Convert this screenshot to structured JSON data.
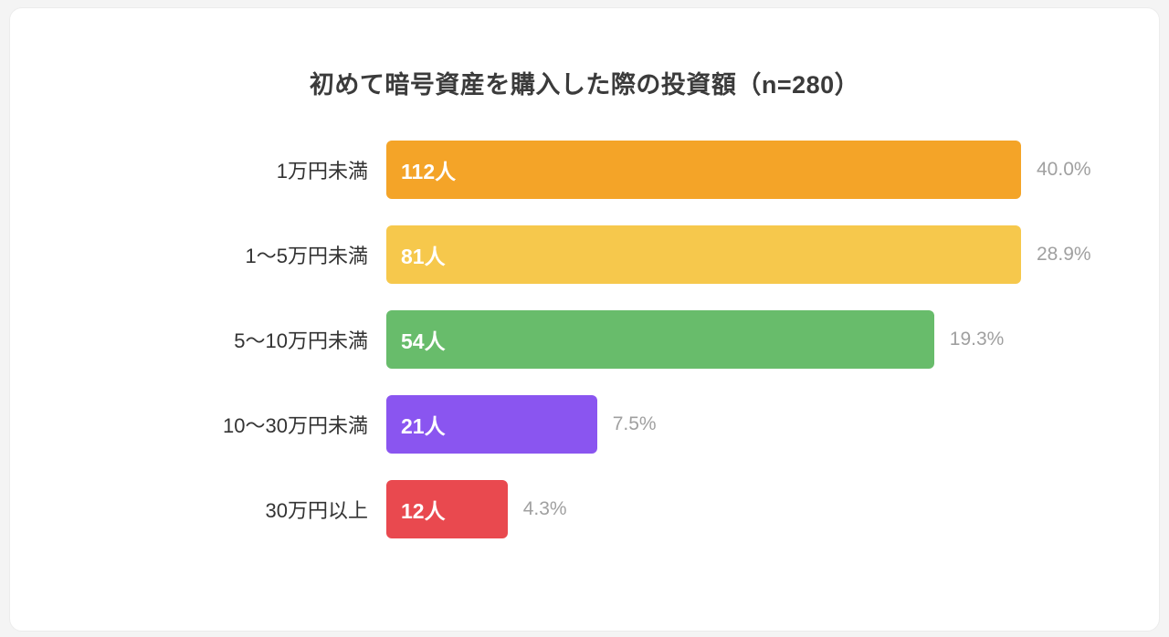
{
  "page": {
    "background_color": "#f4f4f4",
    "card_background_color": "#ffffff"
  },
  "chart_data": {
    "type": "bar",
    "orientation": "horizontal",
    "title": "初めて暗号資産を購入した際の投資額（n=280）",
    "sample_size": 280,
    "categories": [
      "1万円未満",
      "1〜5万円未満",
      "5〜10万円未満",
      "10〜30万円未満",
      "30万円以上"
    ],
    "values": [
      112,
      81,
      54,
      21,
      12
    ],
    "value_labels": [
      "112人",
      "81人",
      "54人",
      "21人",
      "12人"
    ],
    "percents": [
      40.0,
      28.9,
      19.3,
      7.5,
      4.3
    ],
    "percent_labels": [
      "40.0%",
      "28.9%",
      "19.3%",
      "7.5%",
      "4.3%"
    ],
    "bar_colors": [
      "#f4a428",
      "#f6c84c",
      "#68bc6b",
      "#8a55f0",
      "#e9494f"
    ],
    "bar_width_pct": [
      100,
      100,
      86.3,
      33.2,
      19.1
    ],
    "grid": false,
    "legend": false,
    "value_label_position": "inside-left",
    "percent_label_position": "outside-right"
  }
}
